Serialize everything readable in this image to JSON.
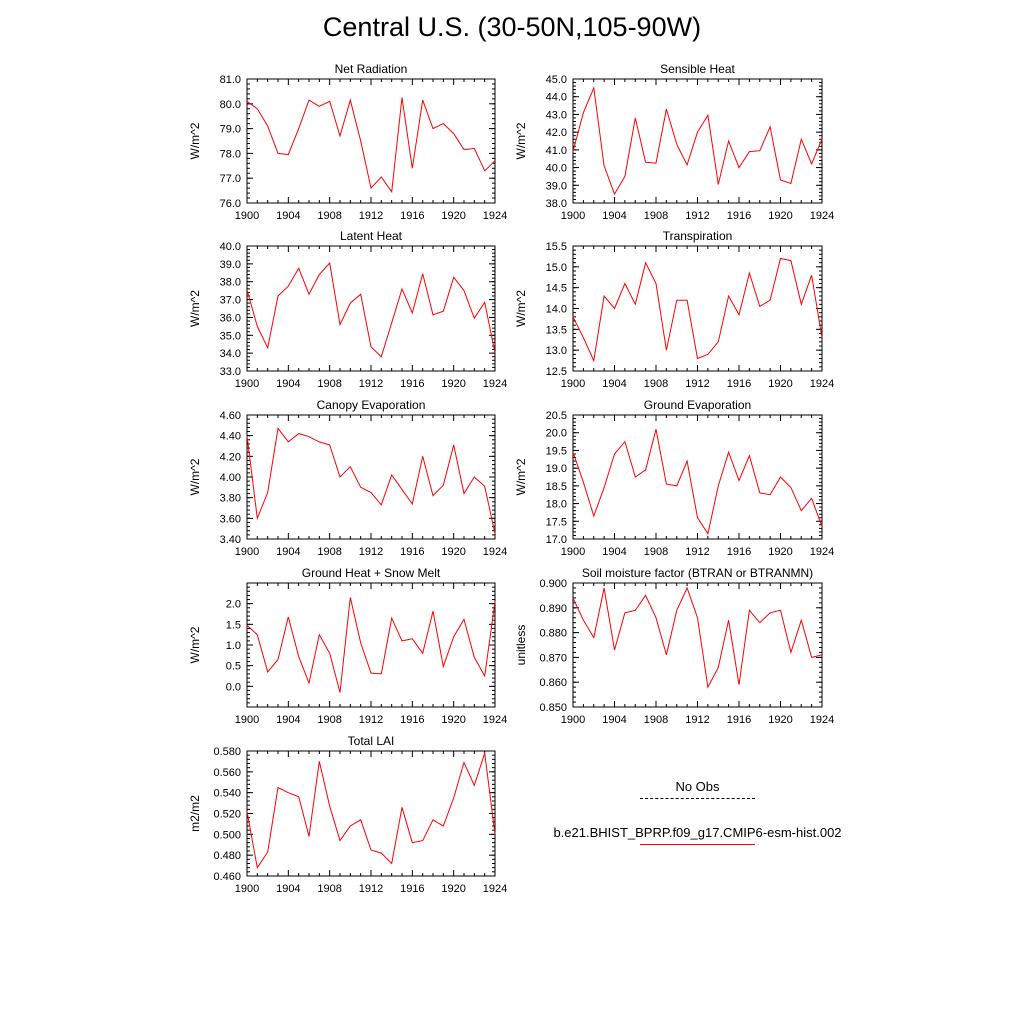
{
  "title": "Central U.S. (30-50N,105-90W)",
  "colors": {
    "series": "#ff0000",
    "axis": "#000000",
    "obs": "#000000"
  },
  "legend": {
    "obs_label": "No Obs",
    "model_label": "b.e21.BHIST_BPRP.f09_g17.CMIP6-esm-hist.002"
  },
  "chart_data": [
    {
      "type": "line",
      "title": "Net Radiation",
      "ylabel": "W/m^2",
      "xlim": [
        1900,
        1924
      ],
      "ylim": [
        76.0,
        81.0
      ],
      "xticks": [
        "1900",
        "1904",
        "1908",
        "1912",
        "1916",
        "1920",
        "1924"
      ],
      "yticks": [
        "76.0",
        "77.0",
        "78.0",
        "79.0",
        "80.0",
        "81.0"
      ],
      "x": [
        1900,
        1901,
        1902,
        1903,
        1904,
        1905,
        1906,
        1907,
        1908,
        1909,
        1910,
        1911,
        1912,
        1913,
        1914,
        1915,
        1916,
        1917,
        1918,
        1919,
        1920,
        1921,
        1922,
        1923,
        1924
      ],
      "series": [
        {
          "values": [
            80.1,
            79.8,
            79.1,
            78.0,
            77.95,
            79.0,
            80.15,
            79.9,
            80.1,
            78.7,
            80.15,
            78.5,
            76.6,
            77.05,
            76.45,
            80.25,
            77.4,
            80.15,
            79.0,
            79.2,
            78.8,
            78.15,
            78.2,
            77.3,
            77.7
          ]
        }
      ]
    },
    {
      "type": "line",
      "title": "Sensible Heat",
      "ylabel": "W/m^2",
      "xlim": [
        1900,
        1924
      ],
      "ylim": [
        38.0,
        45.0
      ],
      "xticks": [
        "1900",
        "1904",
        "1908",
        "1912",
        "1916",
        "1920",
        "1924"
      ],
      "yticks": [
        "38.0",
        "39.0",
        "40.0",
        "41.0",
        "42.0",
        "43.0",
        "44.0",
        "45.0"
      ],
      "x": [
        1900,
        1901,
        1902,
        1903,
        1904,
        1905,
        1906,
        1907,
        1908,
        1909,
        1910,
        1911,
        1912,
        1913,
        1914,
        1915,
        1916,
        1917,
        1918,
        1919,
        1920,
        1921,
        1922,
        1923,
        1924
      ],
      "series": [
        {
          "values": [
            40.9,
            43.1,
            44.5,
            40.1,
            38.5,
            39.5,
            42.8,
            40.3,
            40.25,
            43.3,
            41.3,
            40.15,
            42.0,
            42.95,
            39.05,
            41.5,
            40.0,
            40.9,
            40.95,
            42.3,
            39.3,
            39.1,
            41.6,
            40.2,
            41.6
          ]
        }
      ]
    },
    {
      "type": "line",
      "title": "Latent Heat",
      "ylabel": "W/m^2",
      "xlim": [
        1900,
        1924
      ],
      "ylim": [
        33.0,
        40.0
      ],
      "xticks": [
        "1900",
        "1904",
        "1908",
        "1912",
        "1916",
        "1920",
        "1924"
      ],
      "yticks": [
        "33.0",
        "34.0",
        "35.0",
        "36.0",
        "37.0",
        "38.0",
        "39.0",
        "40.0"
      ],
      "x": [
        1900,
        1901,
        1902,
        1903,
        1904,
        1905,
        1906,
        1907,
        1908,
        1909,
        1910,
        1911,
        1912,
        1913,
        1914,
        1915,
        1916,
        1917,
        1918,
        1919,
        1920,
        1921,
        1922,
        1923,
        1924
      ],
      "series": [
        {
          "values": [
            37.55,
            35.5,
            34.3,
            37.2,
            37.75,
            38.75,
            37.3,
            38.4,
            39.05,
            35.6,
            36.8,
            37.3,
            34.35,
            33.8,
            35.7,
            37.6,
            36.25,
            38.45,
            36.15,
            36.35,
            38.25,
            37.5,
            35.95,
            36.85,
            34.0
          ]
        }
      ]
    },
    {
      "type": "line",
      "title": "Transpiration",
      "ylabel": "W/m^2",
      "xlim": [
        1900,
        1924
      ],
      "ylim": [
        12.5,
        15.5
      ],
      "xticks": [
        "1900",
        "1904",
        "1908",
        "1912",
        "1916",
        "1920",
        "1924"
      ],
      "yticks": [
        "12.5",
        "13.0",
        "13.5",
        "14.0",
        "14.5",
        "15.0",
        "15.5"
      ],
      "x": [
        1900,
        1901,
        1902,
        1903,
        1904,
        1905,
        1906,
        1907,
        1908,
        1909,
        1910,
        1911,
        1912,
        1913,
        1914,
        1915,
        1916,
        1917,
        1918,
        1919,
        1920,
        1921,
        1922,
        1923,
        1924
      ],
      "series": [
        {
          "values": [
            13.8,
            13.3,
            12.75,
            14.3,
            14.0,
            14.6,
            14.1,
            15.1,
            14.6,
            13.0,
            14.2,
            14.2,
            12.8,
            12.9,
            13.2,
            14.3,
            13.85,
            14.85,
            14.05,
            14.2,
            15.2,
            15.15,
            14.1,
            14.8,
            13.3
          ]
        }
      ]
    },
    {
      "type": "line",
      "title": "Canopy Evaporation",
      "ylabel": "W/m^2",
      "xlim": [
        1900,
        1924
      ],
      "ylim": [
        3.4,
        4.6
      ],
      "xticks": [
        "1900",
        "1904",
        "1908",
        "1912",
        "1916",
        "1920",
        "1924"
      ],
      "yticks": [
        "3.40",
        "3.60",
        "3.80",
        "4.00",
        "4.20",
        "4.40",
        "4.60"
      ],
      "x": [
        1900,
        1901,
        1902,
        1903,
        1904,
        1905,
        1906,
        1907,
        1908,
        1909,
        1910,
        1911,
        1912,
        1913,
        1914,
        1915,
        1916,
        1917,
        1918,
        1919,
        1920,
        1921,
        1922,
        1923,
        1924
      ],
      "series": [
        {
          "values": [
            4.4,
            3.6,
            3.85,
            4.47,
            4.34,
            4.42,
            4.39,
            4.34,
            4.31,
            4.0,
            4.1,
            3.9,
            3.85,
            3.73,
            4.02,
            3.88,
            3.74,
            4.2,
            3.82,
            3.92,
            4.31,
            3.84,
            4.0,
            3.91,
            3.45
          ]
        }
      ]
    },
    {
      "type": "line",
      "title": "Ground Evaporation",
      "ylabel": "W/m^2",
      "xlim": [
        1900,
        1924
      ],
      "ylim": [
        17.0,
        20.5
      ],
      "xticks": [
        "1900",
        "1904",
        "1908",
        "1912",
        "1916",
        "1920",
        "1924"
      ],
      "yticks": [
        "17.0",
        "17.5",
        "18.0",
        "18.5",
        "19.0",
        "19.5",
        "20.0",
        "20.5"
      ],
      "x": [
        1900,
        1901,
        1902,
        1903,
        1904,
        1905,
        1906,
        1907,
        1908,
        1909,
        1910,
        1911,
        1912,
        1913,
        1914,
        1915,
        1916,
        1917,
        1918,
        1919,
        1920,
        1921,
        1922,
        1923,
        1924
      ],
      "series": [
        {
          "values": [
            19.45,
            18.6,
            17.65,
            18.45,
            19.4,
            19.75,
            18.75,
            18.95,
            20.1,
            18.55,
            18.5,
            19.2,
            17.6,
            17.15,
            18.5,
            19.45,
            18.65,
            19.35,
            18.3,
            18.25,
            18.75,
            18.45,
            17.8,
            18.15,
            17.35
          ]
        }
      ]
    },
    {
      "type": "line",
      "title": "Ground Heat + Snow Melt",
      "ylabel": "W/m^2",
      "xlim": [
        1900,
        1924
      ],
      "ylim": [
        -0.5,
        2.5
      ],
      "xticks": [
        "1900",
        "1904",
        "1908",
        "1912",
        "1916",
        "1920",
        "1924"
      ],
      "yticks": [
        "0.0",
        "0.5",
        "1.0",
        "1.5",
        "2.0"
      ],
      "ytick_values": [
        0.0,
        0.5,
        1.0,
        1.5,
        2.0
      ],
      "x": [
        1900,
        1901,
        1902,
        1903,
        1904,
        1905,
        1906,
        1907,
        1908,
        1909,
        1910,
        1911,
        1912,
        1913,
        1914,
        1915,
        1916,
        1917,
        1918,
        1919,
        1920,
        1921,
        1922,
        1923,
        1924
      ],
      "series": [
        {
          "values": [
            1.48,
            1.25,
            0.35,
            0.65,
            1.68,
            0.72,
            0.08,
            1.25,
            0.8,
            -0.15,
            2.15,
            1.05,
            0.32,
            0.3,
            1.65,
            1.1,
            1.15,
            0.8,
            1.82,
            0.48,
            1.2,
            1.62,
            0.7,
            0.25,
            2.05
          ]
        }
      ]
    },
    {
      "type": "line",
      "title": "Soil moisture factor (BTRAN or BTRANMN)",
      "ylabel": "unitless",
      "xlim": [
        1900,
        1924
      ],
      "ylim": [
        0.85,
        0.9
      ],
      "xticks": [
        "1900",
        "1904",
        "1908",
        "1912",
        "1916",
        "1920",
        "1924"
      ],
      "yticks": [
        "0.850",
        "0.860",
        "0.870",
        "0.880",
        "0.890",
        "0.900"
      ],
      "x": [
        1900,
        1901,
        1902,
        1903,
        1904,
        1905,
        1906,
        1907,
        1908,
        1909,
        1910,
        1911,
        1912,
        1913,
        1914,
        1915,
        1916,
        1917,
        1918,
        1919,
        1920,
        1921,
        1922,
        1923,
        1924
      ],
      "series": [
        {
          "values": [
            0.894,
            0.885,
            0.878,
            0.898,
            0.873,
            0.888,
            0.889,
            0.895,
            0.886,
            0.871,
            0.889,
            0.898,
            0.886,
            0.858,
            0.866,
            0.885,
            0.859,
            0.889,
            0.884,
            0.888,
            0.889,
            0.872,
            0.885,
            0.87,
            0.871
          ]
        }
      ]
    },
    {
      "type": "line",
      "title": "Total LAI",
      "ylabel": "m2/m2",
      "xlim": [
        1900,
        1924
      ],
      "ylim": [
        0.46,
        0.58
      ],
      "xticks": [
        "1900",
        "1904",
        "1908",
        "1912",
        "1916",
        "1920",
        "1924"
      ],
      "yticks": [
        "0.460",
        "0.480",
        "0.500",
        "0.520",
        "0.540",
        "0.560",
        "0.580"
      ],
      "x": [
        1900,
        1901,
        1902,
        1903,
        1904,
        1905,
        1906,
        1907,
        1908,
        1909,
        1910,
        1911,
        1912,
        1913,
        1914,
        1915,
        1916,
        1917,
        1918,
        1919,
        1920,
        1921,
        1922,
        1923,
        1924
      ],
      "series": [
        {
          "values": [
            0.522,
            0.468,
            0.483,
            0.545,
            0.54,
            0.536,
            0.498,
            0.57,
            0.527,
            0.494,
            0.508,
            0.514,
            0.485,
            0.482,
            0.472,
            0.526,
            0.492,
            0.494,
            0.514,
            0.508,
            0.535,
            0.569,
            0.547,
            0.578,
            0.5
          ]
        }
      ]
    }
  ]
}
